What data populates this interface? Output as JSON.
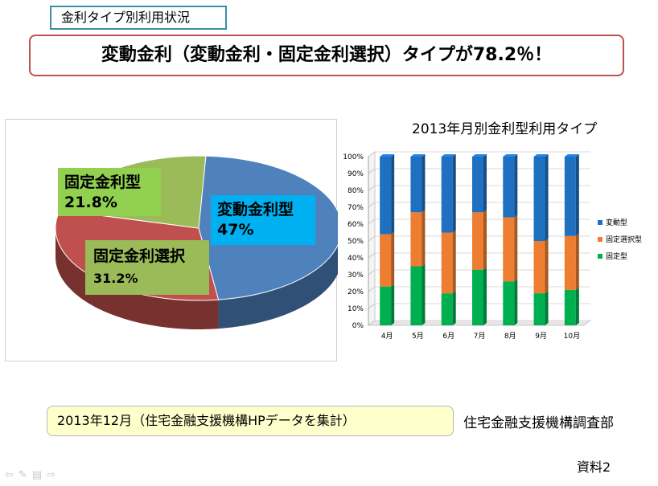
{
  "section_label": "金利タイプ別利用状況",
  "headline": "変動金利（変動金利・固定金利選択）タイプが78.2％！",
  "colors": {
    "variable": "#1f70c1",
    "fixed_selection": "#ed7d31",
    "fixed": "#00b050",
    "pie_variable": "#4f81bd",
    "pie_selection": "#c0504d",
    "pie_fixed": "#9bbb59"
  },
  "chart_data": [
    {
      "type": "pie",
      "title": "",
      "slices": [
        {
          "name": "変動金利型",
          "value": 47.0
        },
        {
          "name": "固定金利選択",
          "value": 31.2
        },
        {
          "name": "固定金利型",
          "value": 21.8
        }
      ],
      "labels": [
        {
          "name": "固定金利型",
          "pct": "21.8%"
        },
        {
          "name": "変動金利型",
          "pct": "47%"
        },
        {
          "name": "固定金利選択",
          "pct": "31.2%"
        }
      ],
      "style": "3d"
    },
    {
      "type": "bar",
      "stacked": true,
      "percent": true,
      "title": "2013年月別金利型利用タイプ",
      "categories": [
        "4月",
        "5月",
        "6月",
        "7月",
        "8月",
        "9月",
        "10月"
      ],
      "series": [
        {
          "name": "固定型",
          "values": [
            23,
            35,
            19,
            33,
            26,
            19,
            21
          ]
        },
        {
          "name": "固定選択型",
          "values": [
            31,
            32,
            36,
            34,
            38,
            31,
            32
          ]
        },
        {
          "name": "変動型",
          "values": [
            46,
            33,
            45,
            33,
            36,
            50,
            47
          ]
        }
      ],
      "yticks": [
        "0%",
        "10%",
        "20%",
        "30%",
        "40%",
        "50%",
        "60%",
        "70%",
        "80%",
        "90%",
        "100%"
      ],
      "ylim": [
        0,
        100
      ],
      "legend_position": "right",
      "legend": [
        "変動型",
        "固定選択型",
        "固定型"
      ]
    }
  ],
  "footnote": "2013年12月（住宅金融支援機構HPデータを集計）",
  "organization": "住宅金融支援機構調査部",
  "document_ref": "資料2",
  "nav_icons": [
    "prev-arrow-icon",
    "pen-icon",
    "menu-icon",
    "next-arrow-icon"
  ]
}
